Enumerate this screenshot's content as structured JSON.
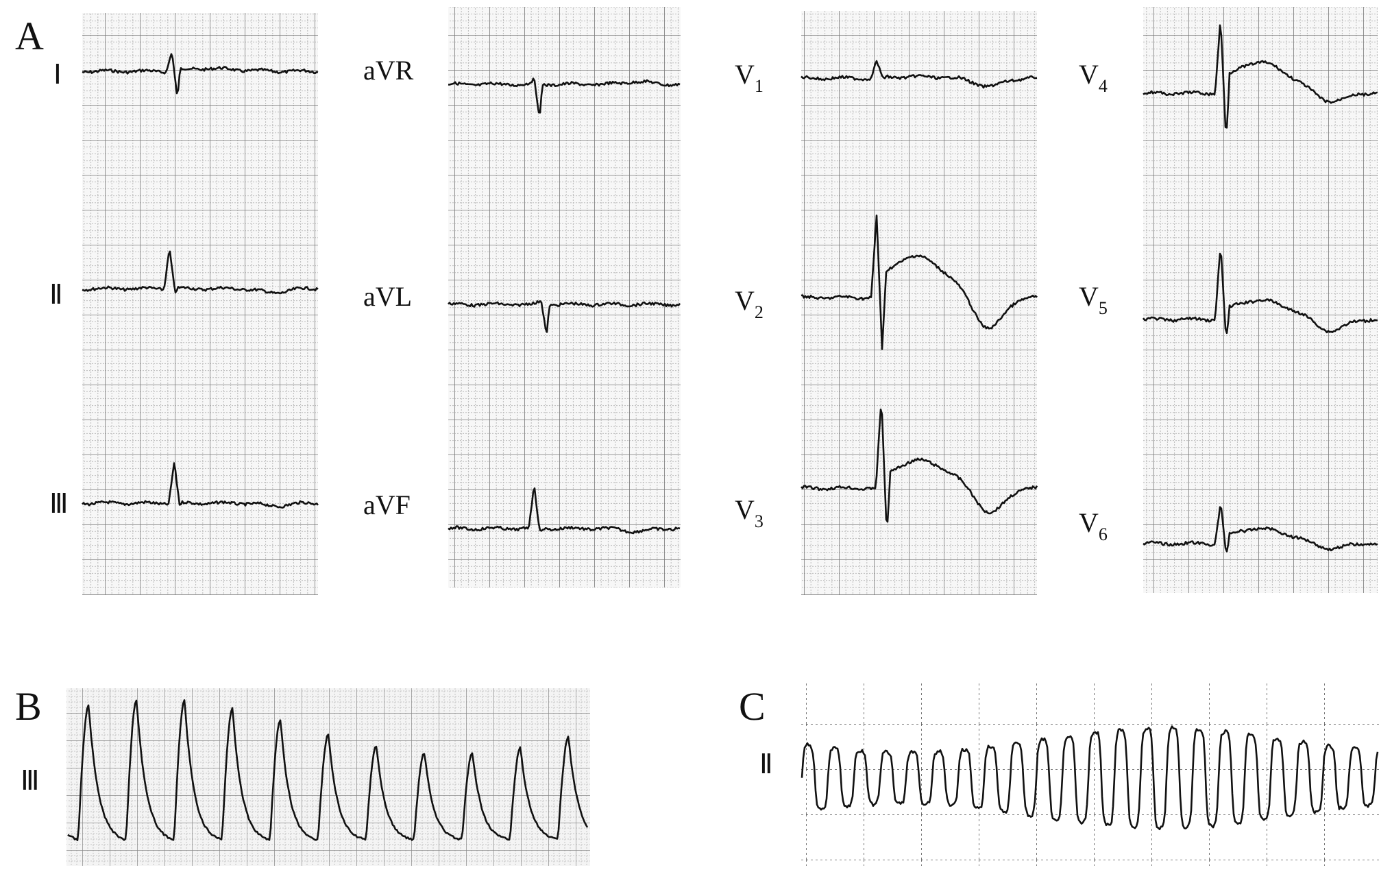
{
  "panel_a": {
    "label": "A",
    "leads": [
      {
        "text": "Ⅰ"
      },
      {
        "text": "Ⅱ"
      },
      {
        "text": "Ⅲ"
      },
      {
        "text": "aVR"
      },
      {
        "text": "aVL"
      },
      {
        "text": "aVF"
      },
      {
        "text": "V",
        "subscript": "1"
      },
      {
        "text": "V",
        "subscript": "2"
      },
      {
        "text": "V",
        "subscript": "3"
      },
      {
        "text": "V",
        "subscript": "4"
      },
      {
        "text": "V",
        "subscript": "5"
      },
      {
        "text": "V",
        "subscript": "6"
      }
    ]
  },
  "panel_b": {
    "label": "B",
    "lead": "Ⅲ"
  },
  "panel_c": {
    "label": "C",
    "lead": "Ⅱ"
  }
}
